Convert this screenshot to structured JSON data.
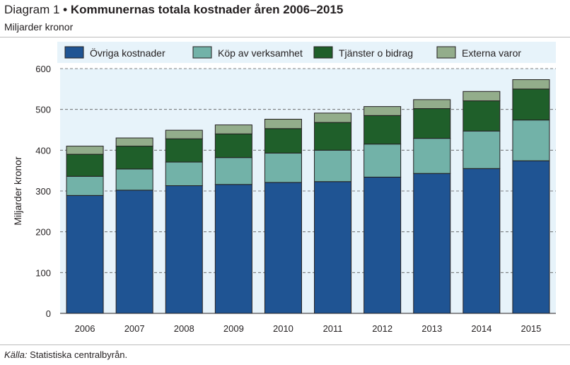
{
  "header": {
    "title_prefix": "Diagram 1",
    "title_bullet": "•",
    "title_main": "Kommunernas totala kostnader åren 2006–2015",
    "subtitle": "Miljarder kronor"
  },
  "footer": {
    "source_label": "Källa:",
    "source_text": " Statistiska centralbyrån."
  },
  "chart_data": {
    "type": "bar",
    "stacked": true,
    "ylabel": "Miljarder kronor",
    "ylim": [
      0,
      600
    ],
    "yticks": [
      0,
      100,
      200,
      300,
      400,
      500,
      600
    ],
    "grid": "horizontal dashed",
    "legend_position": "top",
    "categories": [
      "2006",
      "2007",
      "2008",
      "2009",
      "2010",
      "2011",
      "2012",
      "2013",
      "2014",
      "2015"
    ],
    "series": [
      {
        "name": "Övriga kostnader",
        "color": "#1f5493",
        "values": [
          289,
          302,
          313,
          316,
          321,
          323,
          334,
          343,
          355,
          374
        ]
      },
      {
        "name": "Köp av verksamhet",
        "color": "#72b2a8",
        "values": [
          47,
          52,
          58,
          66,
          72,
          77,
          81,
          86,
          92,
          100
        ]
      },
      {
        "name": "Tjänster o bidrag",
        "color": "#1f5f2a",
        "values": [
          54,
          56,
          57,
          58,
          60,
          68,
          70,
          73,
          74,
          76
        ]
      },
      {
        "name": "Externa varor",
        "color": "#93ad8b",
        "values": [
          20,
          20,
          21,
          22,
          23,
          23,
          22,
          22,
          23,
          23
        ]
      }
    ]
  }
}
